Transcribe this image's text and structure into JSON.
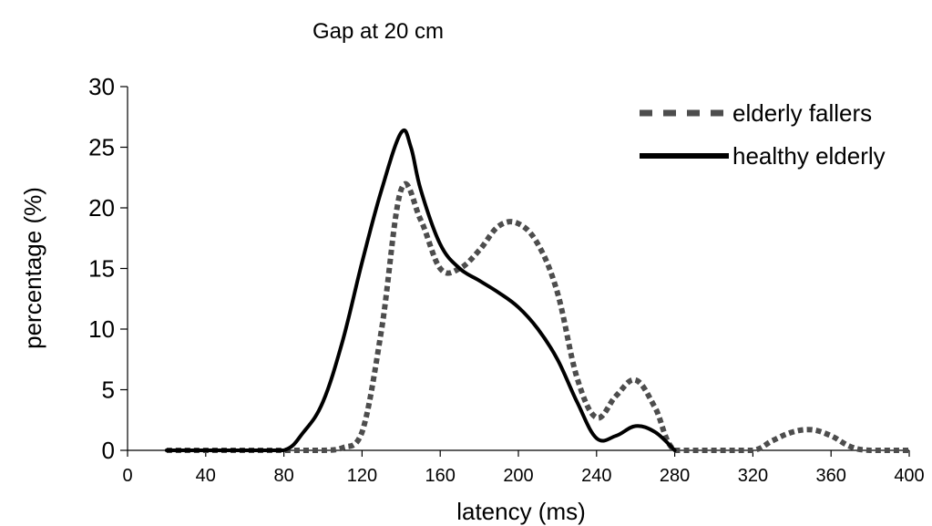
{
  "chart_data": {
    "type": "line",
    "title": "Gap at 20 cm",
    "xlabel": "latency (ms)",
    "ylabel": "percentage (%)",
    "xlim": [
      0,
      400
    ],
    "ylim": [
      0,
      30
    ],
    "xticks": [
      0,
      40,
      80,
      120,
      160,
      200,
      240,
      280,
      320,
      360,
      400
    ],
    "yticks": [
      0,
      5,
      10,
      15,
      20,
      25,
      30
    ],
    "grid": false,
    "legend_position": "top-right",
    "series": [
      {
        "name": "elderly fallers",
        "color": "#4d4d4d",
        "style": "dashed",
        "x": [
          20,
          60,
          80,
          100,
          110,
          120,
          130,
          140,
          150,
          160,
          170,
          180,
          190,
          200,
          210,
          220,
          230,
          240,
          250,
          260,
          270,
          280,
          300,
          320,
          330,
          340,
          350,
          360,
          370,
          380,
          400
        ],
        "y": [
          0,
          0,
          0,
          0,
          0.2,
          1.5,
          10,
          21.5,
          19,
          15,
          15,
          16.5,
          18.5,
          18.7,
          17,
          13,
          6,
          2.7,
          4.5,
          5.8,
          3.5,
          0,
          0,
          0,
          0.8,
          1.5,
          1.7,
          1.2,
          0.3,
          0,
          0
        ]
      },
      {
        "name": "healthy elderly",
        "color": "#000000",
        "style": "solid",
        "x": [
          20,
          40,
          60,
          80,
          90,
          100,
          110,
          120,
          130,
          140,
          145,
          150,
          160,
          170,
          180,
          190,
          200,
          210,
          220,
          230,
          240,
          250,
          260,
          270,
          280
        ],
        "y": [
          0,
          0,
          0,
          0,
          1.5,
          4,
          9,
          15.5,
          21.5,
          26.2,
          25,
          21.5,
          17,
          15,
          14,
          13,
          11.8,
          10,
          7.5,
          4,
          1,
          1.2,
          2,
          1.5,
          0
        ]
      }
    ]
  }
}
